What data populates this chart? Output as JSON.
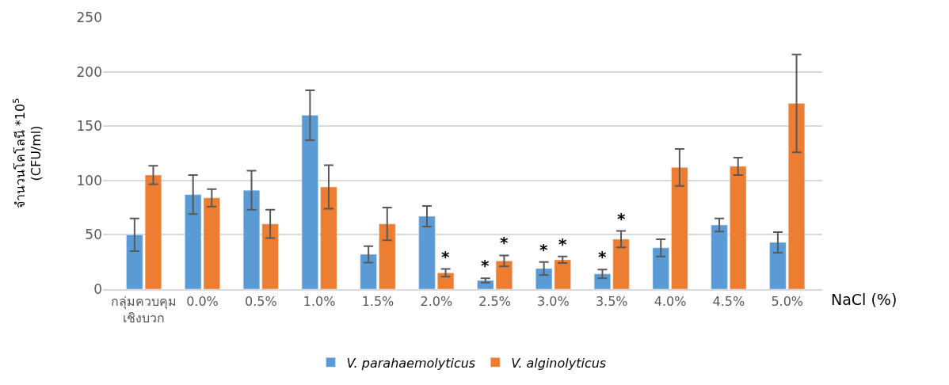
{
  "chart_data": {
    "type": "bar",
    "xlabel": "NaCl (%)",
    "ylabel": "จำนวนโคโลนี *10$^{5}$\n(CFU/ml)",
    "categories": [
      "กลุ่มควบคุม เชิงบวก",
      "0.0%",
      "0.5%",
      "1.0%",
      "1.5%",
      "2.0%",
      "2.5%",
      "3.0%",
      "3.5%",
      "4.0%",
      "4.5%",
      "5.0%"
    ],
    "series": [
      {
        "name": "V. parahaemolyticus",
        "color": "#5b9bd5",
        "values": [
          50,
          87,
          91,
          160,
          32,
          67,
          8,
          19,
          14,
          38,
          59,
          43
        ],
        "errors": [
          15,
          18,
          18,
          23,
          7.5,
          9.5,
          2,
          6,
          4,
          8,
          6,
          9.5
        ]
      },
      {
        "name": "V. alginolyticus",
        "color": "#ed7d31",
        "values": [
          105,
          84,
          60,
          94,
          60,
          15,
          26,
          27,
          46,
          112,
          113,
          171
        ],
        "errors": [
          8.5,
          8,
          13,
          20,
          15,
          3.5,
          5,
          3,
          7.5,
          17,
          8,
          45
        ]
      }
    ],
    "annotations": [
      {
        "text": "*",
        "x": "2.0%",
        "y": 15
      },
      {
        "text": "*",
        "x": "2.5%",
        "y": 8
      },
      {
        "text": "*",
        "x": "2.5%",
        "y": 26
      },
      {
        "text": "*",
        "x": "3.0%",
        "y": 19
      },
      {
        "text": "*",
        "x": "3.0%",
        "y": 27
      },
      {
        "text": "*",
        "x": "3.5%",
        "y": 14
      },
      {
        "text": "*",
        "x": "3.5%",
        "y": 46
      }
    ],
    "ylim": [
      0,
      250
    ],
    "yticks": [
      0,
      50,
      100,
      150,
      200,
      250
    ],
    "grid": "y",
    "legend": "bottom"
  }
}
